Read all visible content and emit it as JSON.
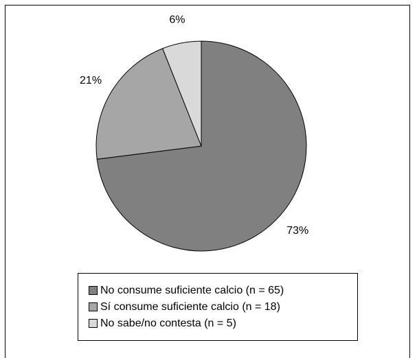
{
  "chart_data": {
    "type": "pie",
    "categories": [
      "No consume suficiente calcio (n = 65)",
      "Sí consume suficiente calcio (n = 18)",
      "No sabe/no contesta (n = 5)"
    ],
    "values": [
      73,
      21,
      6
    ],
    "value_labels": [
      "73%",
      "21%",
      "6%"
    ],
    "colors": [
      "#808080",
      "#a6a6a6",
      "#d9d9d9"
    ],
    "legend": "bottom"
  }
}
